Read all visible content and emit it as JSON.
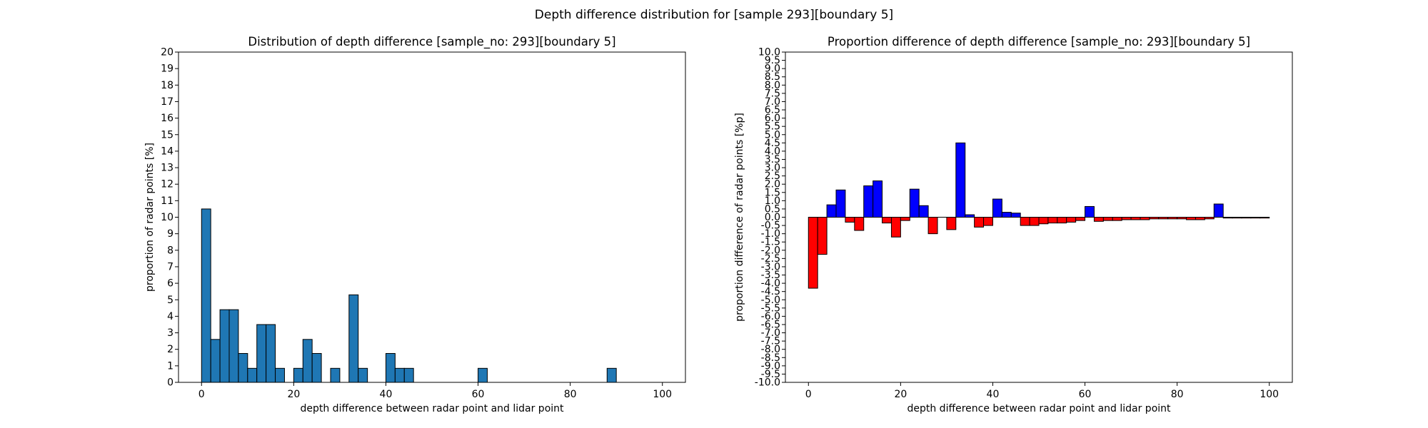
{
  "suptitle": "Depth difference distribution for [sample 293][boundary 5]",
  "chart_data": [
    {
      "type": "bar",
      "title": "Distribution of depth difference [sample_no: 293][boundary 5]",
      "xlabel": "depth difference between radar point and lidar point",
      "ylabel": "proportion of radar points [%]",
      "xlim": [
        -5,
        105
      ],
      "ylim": [
        0,
        20
      ],
      "xticks": [
        0,
        20,
        40,
        60,
        80,
        100
      ],
      "yticks": [
        0,
        1,
        2,
        3,
        4,
        5,
        6,
        7,
        8,
        9,
        10,
        11,
        12,
        13,
        14,
        15,
        16,
        17,
        18,
        19,
        20
      ],
      "bin_width": 2,
      "bar_color": "#1f77b4",
      "edge_color": "#000000",
      "bin_starts": [
        0,
        2,
        4,
        6,
        8,
        10,
        12,
        14,
        16,
        18,
        20,
        22,
        24,
        26,
        28,
        30,
        32,
        34,
        36,
        38,
        40,
        42,
        44,
        46,
        48,
        50,
        52,
        54,
        56,
        58,
        60,
        62,
        64,
        66,
        68,
        70,
        72,
        74,
        76,
        78,
        80,
        82,
        84,
        86,
        88,
        90,
        92,
        94,
        96,
        98
      ],
      "values": [
        10.5,
        2.6,
        4.4,
        4.4,
        1.75,
        0.85,
        3.5,
        3.5,
        0.85,
        0,
        0.85,
        2.6,
        1.75,
        0,
        0.85,
        0,
        5.3,
        0.85,
        0,
        0,
        1.75,
        0.85,
        0.85,
        0,
        0,
        0,
        0,
        0,
        0,
        0,
        0.85,
        0,
        0,
        0,
        0,
        0,
        0,
        0,
        0,
        0,
        0,
        0,
        0,
        0,
        0.85,
        0,
        0,
        0,
        0,
        0
      ]
    },
    {
      "type": "bar",
      "title": "Proportion difference of depth difference [sample_no: 293][boundary 5]",
      "xlabel": "depth difference between radar point and lidar point",
      "ylabel": "proportion difference of radar points [%p]",
      "xlim": [
        -5,
        105
      ],
      "ylim": [
        -10,
        10
      ],
      "xticks": [
        0,
        20,
        40,
        60,
        80,
        100
      ],
      "yticks": [
        -10.0,
        -9.5,
        -9.0,
        -8.5,
        -8.0,
        -7.5,
        -7.0,
        -6.5,
        -6.0,
        -5.5,
        -5.0,
        -4.5,
        -4.0,
        -3.5,
        -3.0,
        -2.5,
        -2.0,
        -1.5,
        -1.0,
        -0.5,
        0.0,
        0.5,
        1.0,
        1.5,
        2.0,
        2.5,
        3.0,
        3.5,
        4.0,
        4.5,
        5.0,
        5.5,
        6.0,
        6.5,
        7.0,
        7.5,
        8.0,
        8.5,
        9.0,
        9.5,
        10.0
      ],
      "bin_width": 2,
      "positive_color": "#0000ff",
      "negative_color": "#ff0000",
      "edge_color": "#000000",
      "bin_starts": [
        0,
        2,
        4,
        6,
        8,
        10,
        12,
        14,
        16,
        18,
        20,
        22,
        24,
        26,
        28,
        30,
        32,
        34,
        36,
        38,
        40,
        42,
        44,
        46,
        48,
        50,
        52,
        54,
        56,
        58,
        60,
        62,
        64,
        66,
        68,
        70,
        72,
        74,
        76,
        78,
        80,
        82,
        84,
        86,
        88,
        90,
        92,
        94,
        96,
        98
      ],
      "values": [
        -4.3,
        -2.25,
        0.75,
        1.65,
        -0.3,
        -0.8,
        1.9,
        2.2,
        -0.35,
        -1.2,
        -0.2,
        1.7,
        0.7,
        -1.0,
        0,
        -0.75,
        4.5,
        0.15,
        -0.6,
        -0.5,
        1.1,
        0.3,
        0.25,
        -0.5,
        -0.5,
        -0.4,
        -0.35,
        -0.35,
        -0.3,
        -0.2,
        0.65,
        -0.25,
        -0.2,
        -0.2,
        -0.15,
        -0.15,
        -0.15,
        -0.1,
        -0.1,
        -0.1,
        -0.1,
        -0.15,
        -0.15,
        -0.1,
        0.8,
        -0.05,
        -0.05,
        -0.05,
        -0.05,
        -0.05
      ]
    }
  ]
}
